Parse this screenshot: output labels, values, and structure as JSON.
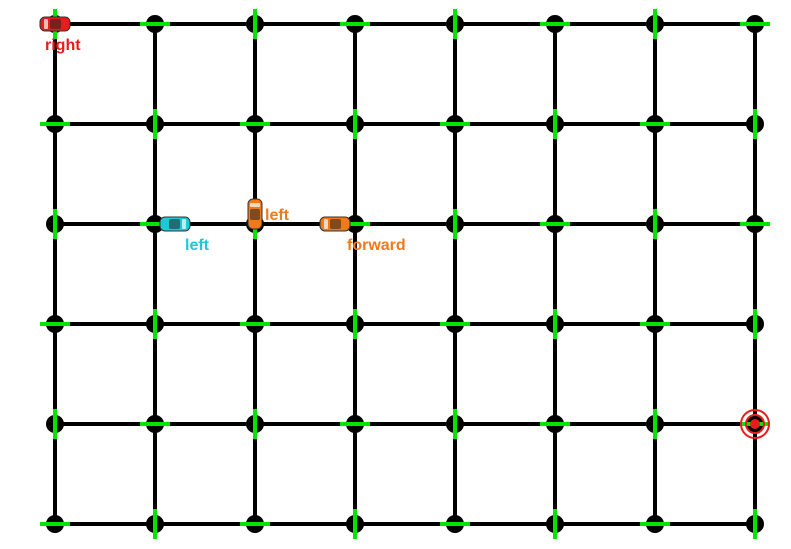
{
  "grid": {
    "columns": 8,
    "rows": 6,
    "road_color": "#000000",
    "signal_color": "#00e600"
  },
  "cars": [
    {
      "id": "car-red",
      "color": "#e81c1c",
      "column": 0,
      "row": 0,
      "heading": "west",
      "action_label": "right"
    },
    {
      "id": "car-cyan",
      "color": "#1ec8d6",
      "column": 1.2,
      "row": 2,
      "heading": "east",
      "action_label": "left"
    },
    {
      "id": "car-orange-1",
      "color": "#f07a1a",
      "column": 2,
      "row": 1.9,
      "heading": "north",
      "action_label": "left"
    },
    {
      "id": "car-orange-2",
      "color": "#f07a1a",
      "column": 2.8,
      "row": 2,
      "heading": "west",
      "action_label": "forward"
    }
  ],
  "destination": {
    "column": 7,
    "row": 4,
    "color": "#e81c1c",
    "icon": "target-icon"
  }
}
